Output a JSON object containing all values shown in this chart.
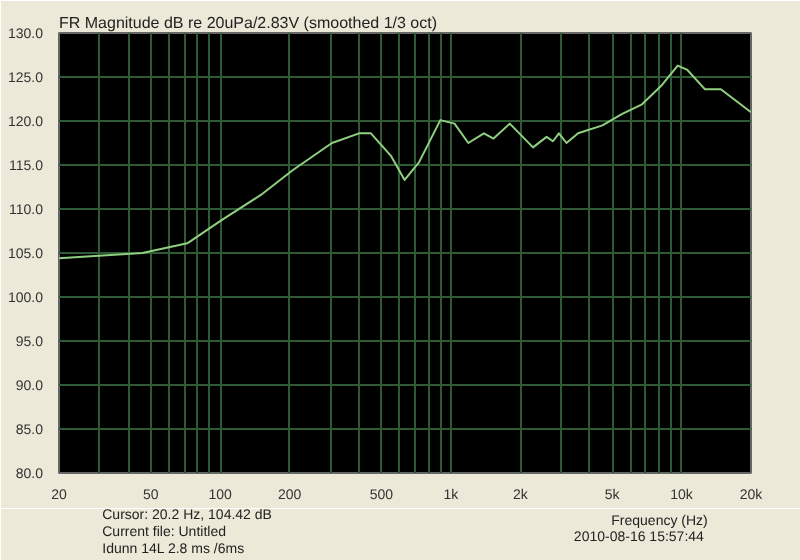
{
  "chart_data": {
    "type": "line",
    "title": "FR Magnitude dB re 20uPa/2.83V (smoothed 1/3 oct)",
    "xlabel": "Frequency (Hz)",
    "log": "x",
    "grid": true,
    "marker": "none",
    "line_style": "solid",
    "xlim": [
      20,
      20000
    ],
    "ylim": [
      80,
      130
    ],
    "xticks": [
      20,
      {
        "value": 30,
        "label": null
      },
      {
        "value": 40,
        "label": null
      },
      50,
      {
        "value": 60,
        "label": null
      },
      {
        "value": 70,
        "label": null
      },
      {
        "value": 80,
        "label": null
      },
      {
        "value": 90,
        "label": null
      },
      100,
      200,
      {
        "value": 300,
        "label": null
      },
      {
        "value": 400,
        "label": null
      },
      500,
      {
        "value": 600,
        "label": null
      },
      {
        "value": 700,
        "label": null
      },
      {
        "value": 800,
        "label": null
      },
      {
        "value": 900,
        "label": null
      },
      {
        "value": 1000,
        "label": "1k"
      },
      {
        "value": 2000,
        "label": "2k"
      },
      {
        "value": 3000,
        "label": null
      },
      {
        "value": 4000,
        "label": null
      },
      {
        "value": 5000,
        "label": "5k"
      },
      {
        "value": 6000,
        "label": null
      },
      {
        "value": 7000,
        "label": null
      },
      {
        "value": 8000,
        "label": null
      },
      {
        "value": 9000,
        "label": null
      },
      {
        "value": 10000,
        "label": "10k"
      },
      {
        "value": 20000,
        "label": "20k"
      }
    ],
    "yticks": [
      {
        "value": 80,
        "label": "80.0"
      },
      {
        "value": 85,
        "label": "85.0"
      },
      {
        "value": 90,
        "label": "90.0"
      },
      {
        "value": 95,
        "label": "95.0"
      },
      {
        "value": 100,
        "label": "100.0"
      },
      {
        "value": 105,
        "label": "105.0"
      },
      {
        "value": 110,
        "label": "110.0"
      },
      {
        "value": 115,
        "label": "115.0"
      },
      {
        "value": 120,
        "label": "120.0"
      },
      {
        "value": 125,
        "label": "125.0"
      },
      {
        "value": 130,
        "label": "130.0"
      }
    ],
    "annotations": [
      "Cursor: 20.2 Hz, 104.42 dB",
      "Current file: Untitled",
      "Idunn 14L 2.8 ms /6ms",
      "2010-08-16  15:57:44"
    ],
    "series": [
      {
        "color": "#8fd07f",
        "x": [
          20,
          46,
          72,
          101,
          150,
          206,
          305,
          400,
          450,
          551,
          630,
          727,
          900,
          1037,
          1190,
          1390,
          1530,
          1800,
          2270,
          2600,
          2770,
          2940,
          3170,
          3560,
          4540,
          5530,
          6740,
          8230,
          9620,
          10600,
          12640,
          14800,
          20000
        ],
        "values": [
          104.4,
          105.0,
          106.1,
          108.7,
          111.6,
          114.4,
          117.5,
          118.6,
          118.6,
          116.0,
          113.3,
          115.3,
          120.1,
          119.7,
          117.5,
          118.6,
          118.0,
          119.7,
          117.0,
          118.2,
          117.7,
          118.6,
          117.5,
          118.6,
          119.5,
          120.8,
          121.9,
          124.1,
          126.3,
          125.8,
          123.6,
          123.6,
          121.0
        ]
      }
    ]
  }
}
